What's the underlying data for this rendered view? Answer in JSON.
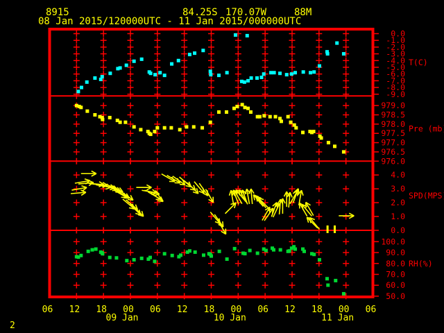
{
  "header": {
    "station_id": "8915",
    "latitude": "84.25S",
    "longitude": "170.07W",
    "elevation": "88M",
    "period": "08 Jan 2015/120000UTC - 11 Jan 2015/000000UTC"
  },
  "bottom_left_label": "2",
  "colors": {
    "background": "#000000",
    "frame": "#ff0000",
    "axis_text": "#ff0000",
    "header_text": "#ffff00",
    "temperature": "#00ffff",
    "pressure": "#ffff00",
    "wind": "#ffff00",
    "rh": "#00d832"
  },
  "x_axis": {
    "hours_range": [
      0,
      72
    ],
    "hour_step": 6,
    "hour_labels": [
      "06",
      "12",
      "18",
      "00",
      "06",
      "12",
      "18",
      "00",
      "06",
      "12",
      "18",
      "00",
      "06"
    ],
    "date_labels": [
      {
        "label": "09 Jan",
        "tick_index": 3
      },
      {
        "label": "10 Jan",
        "tick_index": 7
      },
      {
        "label": "11 Jan",
        "tick_index": 11
      }
    ]
  },
  "chart_data": [
    {
      "type": "scatter",
      "panel": "temperature",
      "ylabel": "T(C)",
      "color_key": "temperature",
      "yticks": [
        0.0,
        -1.0,
        -2.0,
        -3.0,
        -4.0,
        -5.0,
        -6.0,
        -7.0,
        -8.0,
        -9.0
      ],
      "ylim": [
        0.67,
        -9.26
      ],
      "points": [
        [
          6.4,
          -8.6
        ],
        [
          7.1,
          -8.0
        ],
        [
          8.3,
          -7.2
        ],
        [
          10.1,
          -6.6
        ],
        [
          11.4,
          -6.8
        ],
        [
          11.7,
          -6.4
        ],
        [
          13.5,
          -5.9
        ],
        [
          15.2,
          -5.2
        ],
        [
          15.7,
          -5.1
        ],
        [
          17.1,
          -4.7
        ],
        [
          18.8,
          -4.1
        ],
        [
          20.5,
          -3.8
        ],
        [
          22.2,
          -5.7
        ],
        [
          22.5,
          -5.9
        ],
        [
          23.5,
          -6.1
        ],
        [
          24.6,
          -5.8
        ],
        [
          25.6,
          -6.2
        ],
        [
          27.2,
          -4.5
        ],
        [
          28.7,
          -4.0
        ],
        [
          31.2,
          -3.1
        ],
        [
          32.3,
          -2.9
        ],
        [
          34.2,
          -2.5
        ],
        [
          35.8,
          -5.6
        ],
        [
          35.9,
          -6.1
        ],
        [
          37.7,
          -6.2
        ],
        [
          39.5,
          -5.8
        ],
        [
          41.4,
          -0.2
        ],
        [
          42.8,
          -7.1
        ],
        [
          43.4,
          -7.2
        ],
        [
          44.0,
          -0.3
        ],
        [
          44.2,
          -7.0
        ],
        [
          44.9,
          -6.6
        ],
        [
          46.2,
          -6.6
        ],
        [
          47.2,
          -6.5
        ],
        [
          47.7,
          -6.0
        ],
        [
          49.3,
          -5.8
        ],
        [
          50.0,
          -5.8
        ],
        [
          51.3,
          -5.9
        ],
        [
          52.8,
          -6.1
        ],
        [
          53.9,
          -6.0
        ],
        [
          54.7,
          -5.8
        ],
        [
          56.5,
          -5.7
        ],
        [
          58.1,
          -5.8
        ],
        [
          58.9,
          -5.7
        ],
        [
          60.1,
          -4.8
        ],
        [
          61.8,
          -2.7
        ],
        [
          61.9,
          -3.0
        ],
        [
          64.0,
          -1.4
        ],
        [
          65.5,
          -3.0
        ]
      ]
    },
    {
      "type": "scatter",
      "panel": "pressure",
      "ylabel": "Pre (mb)",
      "color_key": "pressure",
      "yticks": [
        979.0,
        978.5,
        978.0,
        977.5,
        977.0,
        976.5,
        976.0
      ],
      "ylim": [
        979.52,
        976.0
      ],
      "points": [
        [
          6.0,
          979.0
        ],
        [
          6.6,
          978.95
        ],
        [
          7.0,
          978.9
        ],
        [
          8.4,
          978.7
        ],
        [
          10.1,
          978.5
        ],
        [
          11.2,
          978.4
        ],
        [
          11.7,
          978.35
        ],
        [
          11.8,
          978.25
        ],
        [
          13.4,
          978.35
        ],
        [
          15.1,
          978.2
        ],
        [
          15.7,
          978.1
        ],
        [
          16.9,
          978.1
        ],
        [
          18.8,
          977.85
        ],
        [
          20.3,
          977.7
        ],
        [
          21.9,
          977.6
        ],
        [
          22.2,
          977.5
        ],
        [
          22.5,
          977.45
        ],
        [
          23.4,
          977.6
        ],
        [
          24.0,
          977.8
        ],
        [
          25.6,
          977.8
        ],
        [
          27.1,
          977.8
        ],
        [
          29.0,
          977.7
        ],
        [
          30.5,
          977.85
        ],
        [
          32.1,
          977.85
        ],
        [
          34.0,
          977.8
        ],
        [
          35.8,
          978.1
        ],
        [
          37.7,
          978.65
        ],
        [
          39.4,
          978.65
        ],
        [
          41.1,
          978.85
        ],
        [
          41.8,
          978.95
        ],
        [
          42.9,
          979.05
        ],
        [
          43.5,
          978.9
        ],
        [
          44.2,
          978.85
        ],
        [
          44.8,
          978.65
        ],
        [
          46.3,
          978.4
        ],
        [
          46.8,
          978.4
        ],
        [
          47.8,
          978.45
        ],
        [
          49.1,
          978.4
        ],
        [
          50.3,
          978.4
        ],
        [
          51.3,
          978.3
        ],
        [
          51.6,
          978.15
        ],
        [
          53.1,
          978.4
        ],
        [
          53.7,
          978.1
        ],
        [
          54.5,
          977.95
        ],
        [
          54.9,
          977.8
        ],
        [
          56.4,
          977.55
        ],
        [
          58.0,
          977.6
        ],
        [
          58.4,
          977.55
        ],
        [
          58.8,
          977.6
        ],
        [
          60.2,
          977.35
        ],
        [
          60.5,
          977.25
        ],
        [
          62.1,
          977.0
        ],
        [
          63.5,
          976.8
        ],
        [
          65.5,
          976.5
        ]
      ]
    },
    {
      "type": "vector",
      "panel": "wind_speed",
      "ylabel": "SPD(MPS)",
      "color_key": "wind",
      "yticks": [
        4.0,
        3.0,
        2.0,
        1.0,
        0.0
      ],
      "ylim": [
        5.0,
        0.0
      ],
      "points": [
        [
          6.4,
          2.7,
          5
        ],
        [
          6.6,
          3.0,
          10
        ],
        [
          7.3,
          3.5,
          10
        ],
        [
          8.1,
          3.4,
          5
        ],
        [
          8.7,
          4.1,
          0
        ],
        [
          10.4,
          3.35,
          -5
        ],
        [
          11.2,
          3.3,
          -5
        ],
        [
          12.0,
          3.2,
          -10
        ],
        [
          12.9,
          3.15,
          -10
        ],
        [
          13.5,
          3.1,
          -15
        ],
        [
          14.3,
          3.0,
          -20
        ],
        [
          14.8,
          3.0,
          -25
        ],
        [
          15.7,
          2.65,
          -30
        ],
        [
          16.3,
          2.6,
          -30
        ],
        [
          17.2,
          2.5,
          -35
        ],
        [
          17.6,
          1.9,
          -40
        ],
        [
          18.3,
          1.85,
          -40
        ],
        [
          19.1,
          1.5,
          -45
        ],
        [
          19.7,
          1.4,
          -45
        ],
        [
          21.0,
          3.1,
          0
        ],
        [
          22.2,
          2.8,
          -10
        ],
        [
          22.8,
          2.75,
          -15
        ],
        [
          23.4,
          2.5,
          -30
        ],
        [
          23.9,
          2.4,
          -35
        ],
        [
          26.4,
          3.8,
          -30
        ],
        [
          27.6,
          3.7,
          -30
        ],
        [
          28.8,
          3.6,
          -35
        ],
        [
          30.2,
          3.5,
          -40
        ],
        [
          31.2,
          3.25,
          -40
        ],
        [
          31.9,
          3.05,
          -45
        ],
        [
          33.3,
          3.1,
          -50
        ],
        [
          34.3,
          2.95,
          -55
        ],
        [
          35.6,
          2.5,
          -60
        ],
        [
          36.9,
          0.9,
          -50
        ],
        [
          37.7,
          0.7,
          -55
        ],
        [
          38.4,
          0.2,
          -60
        ],
        [
          40.3,
          1.6,
          45
        ],
        [
          40.7,
          2.35,
          100
        ],
        [
          41.5,
          2.4,
          110
        ],
        [
          42.0,
          2.4,
          120
        ],
        [
          42.6,
          2.5,
          130
        ],
        [
          43.1,
          2.45,
          120
        ],
        [
          43.5,
          2.4,
          110
        ],
        [
          44.2,
          2.45,
          100
        ],
        [
          45.0,
          2.45,
          95
        ],
        [
          46.5,
          2.15,
          130
        ],
        [
          47.1,
          2.05,
          130
        ],
        [
          47.7,
          1.95,
          135
        ],
        [
          48.2,
          1.2,
          60
        ],
        [
          48.8,
          1.15,
          55
        ],
        [
          50.0,
          1.5,
          70
        ],
        [
          50.5,
          1.45,
          65
        ],
        [
          51.3,
          1.7,
          85
        ],
        [
          51.9,
          1.75,
          90
        ],
        [
          52.8,
          2.25,
          90
        ],
        [
          53.4,
          2.2,
          85
        ],
        [
          54.4,
          2.4,
          60
        ],
        [
          54.8,
          2.5,
          70
        ],
        [
          55.8,
          2.35,
          80
        ],
        [
          56.5,
          1.5,
          120
        ],
        [
          57.3,
          1.45,
          130
        ],
        [
          57.9,
          1.55,
          120
        ],
        [
          58.5,
          0.55,
          135
        ],
        [
          59.0,
          0.5,
          130
        ],
        [
          66.1,
          1.05,
          0
        ]
      ],
      "calm_bars_t": [
        61.9,
        63.5
      ]
    },
    {
      "type": "scatter",
      "panel": "rh",
      "ylabel": "RH(%)",
      "color_key": "rh",
      "yticks": [
        100.0,
        90.0,
        80.0,
        70.0,
        60.0,
        50.0
      ],
      "ylim": [
        110.4,
        49.3
      ],
      "points": [
        [
          6.0,
          86.2
        ],
        [
          6.4,
          85.8
        ],
        [
          7.0,
          87.3
        ],
        [
          8.6,
          91.1
        ],
        [
          9.5,
          92.5
        ],
        [
          10.3,
          93.2
        ],
        [
          11.4,
          90.4
        ],
        [
          11.7,
          89.8
        ],
        [
          11.8,
          88.9
        ],
        [
          13.4,
          85.5
        ],
        [
          14.9,
          85.1
        ],
        [
          17.2,
          82.6
        ],
        [
          18.8,
          83.4
        ],
        [
          20.5,
          84.7
        ],
        [
          22.0,
          84.0
        ],
        [
          22.4,
          85.5
        ],
        [
          23.4,
          81.9
        ],
        [
          25.6,
          88.9
        ],
        [
          27.3,
          87.3
        ],
        [
          28.8,
          86.2
        ],
        [
          29.2,
          87.6
        ],
        [
          30.7,
          90.4
        ],
        [
          31.2,
          91.5
        ],
        [
          32.4,
          90.4
        ],
        [
          34.3,
          87.6
        ],
        [
          35.5,
          88.9
        ],
        [
          35.8,
          88.3
        ],
        [
          36.0,
          86.8
        ],
        [
          37.8,
          91.1
        ],
        [
          39.5,
          84.0
        ],
        [
          41.2,
          93.6
        ],
        [
          43.1,
          89.4
        ],
        [
          43.5,
          89.0
        ],
        [
          44.6,
          91.9
        ],
        [
          46.3,
          89.4
        ],
        [
          47.7,
          93.2
        ],
        [
          48.2,
          91.9
        ],
        [
          49.6,
          94.0
        ],
        [
          49.9,
          92.5
        ],
        [
          51.4,
          92.5
        ],
        [
          53.1,
          91.1
        ],
        [
          53.4,
          91.5
        ],
        [
          53.9,
          94.0
        ],
        [
          54.4,
          95.3
        ],
        [
          54.7,
          93.2
        ],
        [
          56.4,
          93.2
        ],
        [
          56.7,
          91.1
        ],
        [
          58.4,
          88.9
        ],
        [
          58.9,
          88.3
        ],
        [
          60.1,
          83.4
        ],
        [
          61.8,
          66.0
        ],
        [
          62.0,
          60.1
        ],
        [
          63.7,
          64.3
        ],
        [
          65.5,
          52.2
        ]
      ]
    }
  ]
}
